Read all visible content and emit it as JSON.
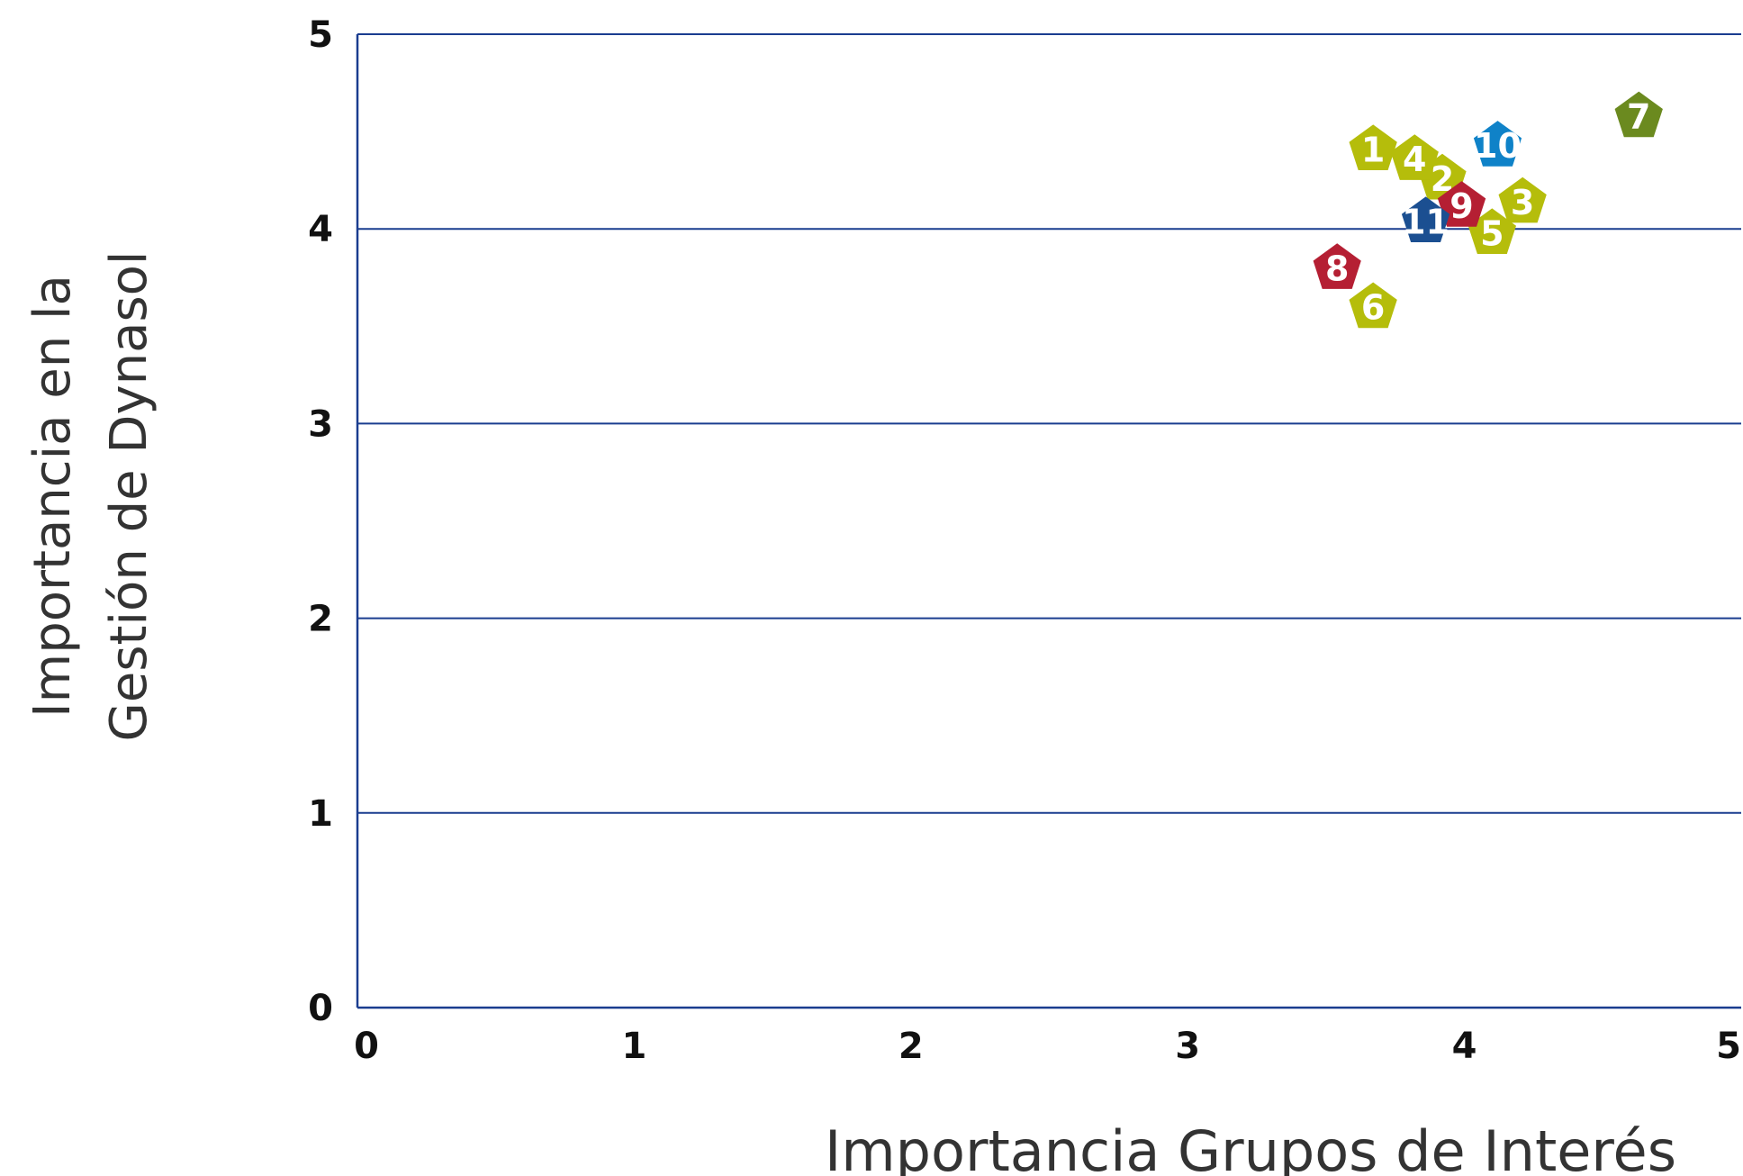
{
  "chart_data": {
    "type": "scatter",
    "xlabel": "Importancia Grupos de Interés",
    "ylabel_lines": [
      "Importancia en la",
      "Gestión de Dynasol"
    ],
    "xlim": [
      0,
      5
    ],
    "ylim": [
      0,
      5
    ],
    "x_ticks": [
      "0",
      "1",
      "2",
      "3",
      "4",
      "5"
    ],
    "y_ticks": [
      "0",
      "1",
      "2",
      "3",
      "4",
      "5"
    ],
    "grid": "horizontal",
    "marker_shape": "pentagon",
    "points": [
      {
        "label": "1",
        "x": 3.67,
        "y": 4.42,
        "color": "#b5bd0b"
      },
      {
        "label": "2",
        "x": 3.92,
        "y": 4.27,
        "color": "#b5bd0b"
      },
      {
        "label": "3",
        "x": 4.21,
        "y": 4.15,
        "color": "#b5bd0b"
      },
      {
        "label": "4",
        "x": 3.82,
        "y": 4.37,
        "color": "#b5bd0b"
      },
      {
        "label": "5",
        "x": 4.1,
        "y": 3.99,
        "color": "#b5bd0b"
      },
      {
        "label": "6",
        "x": 3.67,
        "y": 3.61,
        "color": "#b5bd0b"
      },
      {
        "label": "7",
        "x": 4.63,
        "y": 4.59,
        "color": "#6b8a1f"
      },
      {
        "label": "8",
        "x": 3.54,
        "y": 3.81,
        "color": "#b51f33"
      },
      {
        "label": "9",
        "x": 3.99,
        "y": 4.13,
        "color": "#b51f33"
      },
      {
        "label": "10",
        "x": 4.12,
        "y": 4.44,
        "color": "#0f82c8"
      },
      {
        "label": "11",
        "x": 3.86,
        "y": 4.05,
        "color": "#1b4f91"
      }
    ],
    "colors": {
      "grid": "#1a3d8f",
      "axis": "#1a3d8f"
    }
  }
}
